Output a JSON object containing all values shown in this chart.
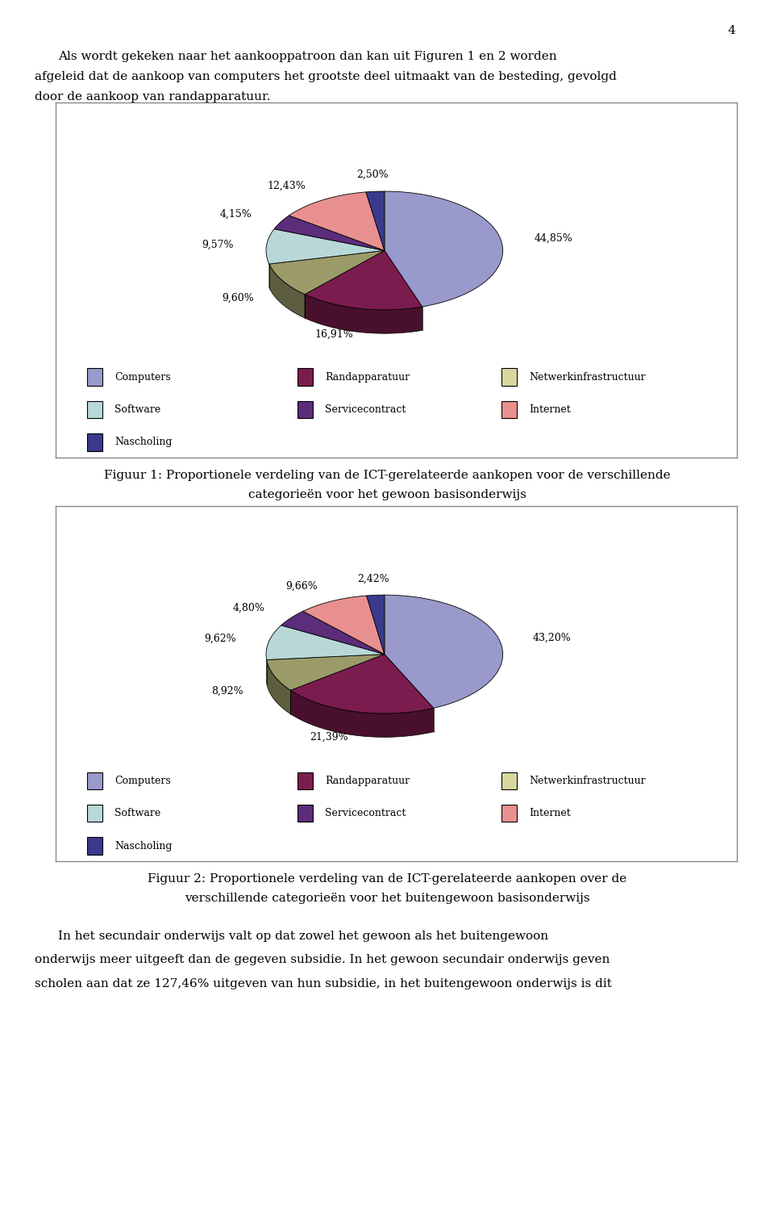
{
  "page_number": "4",
  "intro_text_lines": [
    "Als wordt gekeken naar het aankooppatroon dan kan uit Figuren 1 en 2 worden",
    "afgeleid dat de aankoop van computers het grootste deel uitmaakt van de besteding, gevolgd",
    "door de aankoop van randapparatuur."
  ],
  "chart1": {
    "values": [
      44.85,
      16.91,
      9.6,
      9.57,
      4.15,
      12.43,
      2.5
    ],
    "labels": [
      "44,85%",
      "16,91%",
      "9,60%",
      "9,57%",
      "4,15%",
      "12,43%",
      "2,50%"
    ],
    "colors": [
      "#9999CC",
      "#7B1C4E",
      "#9B9B6A",
      "#B8D8D8",
      "#5C2D7A",
      "#E89090",
      "#3A3A8C"
    ],
    "legend_labels": [
      "Computers",
      "Randapparatuur",
      "Netwerkinfrastructuur",
      "Software",
      "Servicecontract",
      "Internet",
      "Nascholing"
    ],
    "legend_colors": [
      "#9999CC",
      "#7B1C4E",
      "#D8D8A0",
      "#B8D8D8",
      "#5C2D7A",
      "#E89090",
      "#3A3A8C"
    ],
    "caption_line1": "Figuur 1: Proportionele verdeling van de ICT-gerelateerde aankopen voor de verschillende",
    "caption_line2": "categorieën voor het gewoon basisonderwijs"
  },
  "chart2": {
    "values": [
      43.2,
      21.39,
      8.92,
      9.62,
      4.8,
      9.66,
      2.42
    ],
    "labels": [
      "43,20%",
      "21,39%",
      "8,92%",
      "9,62%",
      "4,80%",
      "9,66%",
      "2,42%"
    ],
    "colors": [
      "#9999CC",
      "#7B1C4E",
      "#9B9B6A",
      "#B8D8D8",
      "#5C2D7A",
      "#E89090",
      "#3A3A8C"
    ],
    "legend_labels": [
      "Computers",
      "Randapparatuur",
      "Netwerkinfrastructuur",
      "Software",
      "Servicecontract",
      "Internet",
      "Nascholing"
    ],
    "legend_colors": [
      "#9999CC",
      "#7B1C4E",
      "#D8D8A0",
      "#B8D8D8",
      "#5C2D7A",
      "#E89090",
      "#3A3A8C"
    ],
    "caption_line1": "Figuur 2: Proportionele verdeling van de ICT-gerelateerde aankopen over de",
    "caption_line2": "verschillende categorieën voor het buitengewoon basisonderwijs"
  },
  "bottom_text_lines": [
    "In het secundair onderwijs valt op dat zowel het gewoon als het buitengewoon",
    "onderwijs meer uitgeeft dan de gegeven subsidie. In het gewoon secundair onderwijs geven",
    "scholen aan dat ze 127,46% uitgeven van hun subsidie, in het buitengewoon onderwijs is dit"
  ],
  "bg_color": "#ffffff",
  "text_color": "#000000"
}
